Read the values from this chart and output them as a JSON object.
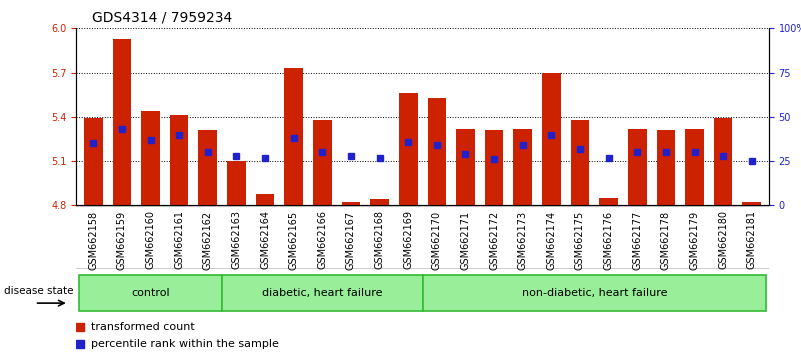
{
  "title": "GDS4314 / 7959234",
  "samples": [
    "GSM662158",
    "GSM662159",
    "GSM662160",
    "GSM662161",
    "GSM662162",
    "GSM662163",
    "GSM662164",
    "GSM662165",
    "GSM662166",
    "GSM662167",
    "GSM662168",
    "GSM662169",
    "GSM662170",
    "GSM662171",
    "GSM662172",
    "GSM662173",
    "GSM662174",
    "GSM662175",
    "GSM662176",
    "GSM662177",
    "GSM662178",
    "GSM662179",
    "GSM662180",
    "GSM662181"
  ],
  "bar_values": [
    5.39,
    5.93,
    5.44,
    5.41,
    5.31,
    5.1,
    4.88,
    5.73,
    5.38,
    4.82,
    4.84,
    5.56,
    5.53,
    5.32,
    5.31,
    5.32,
    5.7,
    5.38,
    4.85,
    5.32,
    5.31,
    5.32,
    5.39,
    4.82
  ],
  "percentile_values": [
    35,
    43,
    37,
    40,
    30,
    28,
    27,
    38,
    30,
    28,
    27,
    36,
    34,
    29,
    26,
    34,
    40,
    32,
    27,
    30,
    30,
    30,
    28,
    25
  ],
  "ylim_left": [
    4.8,
    6.0
  ],
  "ylim_right": [
    0,
    100
  ],
  "yticks_left": [
    4.8,
    5.1,
    5.4,
    5.7,
    6.0
  ],
  "yticks_right": [
    0,
    25,
    50,
    75,
    100
  ],
  "ytick_labels_right": [
    "0",
    "25",
    "50",
    "75",
    "100%"
  ],
  "bar_color": "#cc2200",
  "dot_color": "#2222cc",
  "groups": [
    {
      "label": "control",
      "start": 0,
      "end": 4
    },
    {
      "label": "diabetic, heart failure",
      "start": 5,
      "end": 11
    },
    {
      "label": "non-diabetic, heart failure",
      "start": 12,
      "end": 23
    }
  ],
  "group_fill_color": "#99ee99",
  "group_edge_color": "#33bb33",
  "xtick_bg_color": "#cccccc",
  "title_fontsize": 10,
  "tick_fontsize": 7,
  "legend_items": [
    "transformed count",
    "percentile rank within the sample"
  ],
  "legend_colors": [
    "#cc2200",
    "#2222cc"
  ]
}
